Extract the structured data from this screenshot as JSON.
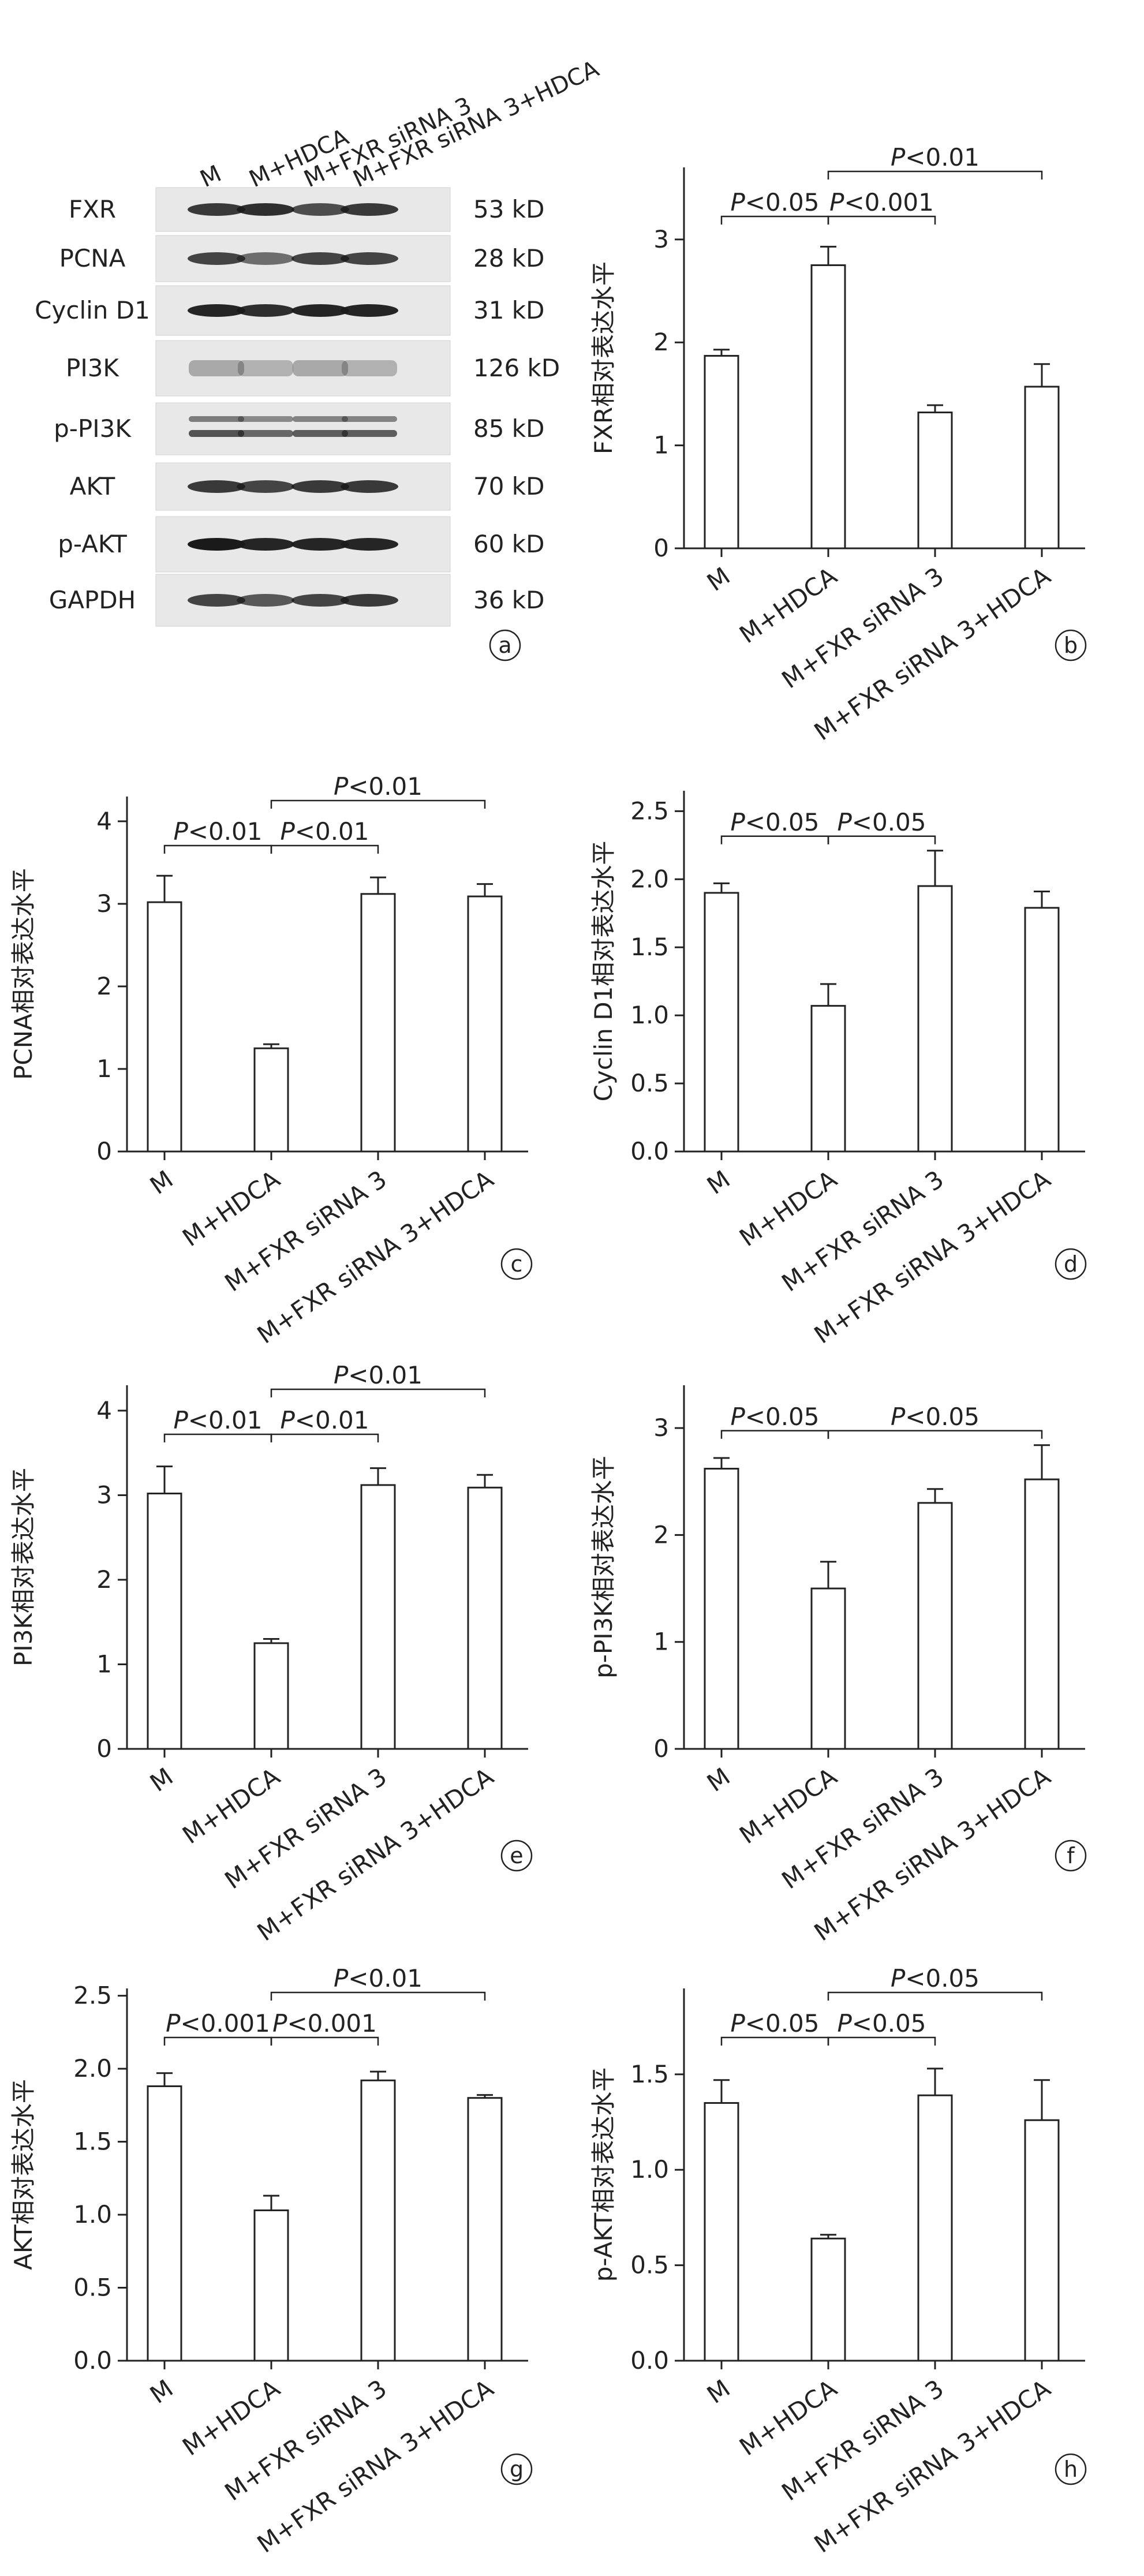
{
  "panel_a": {
    "letter": "a",
    "lanes": [
      "M",
      "M+HDCA",
      "M+FXR siRNA 3",
      "M+FXR siRNA 3+HDCA"
    ],
    "proteins": [
      "FXR",
      "PCNA",
      "Cyclin D1",
      "PI3K",
      "p-PI3K",
      "AKT",
      "p-AKT",
      "GAPDH"
    ],
    "sizes": [
      "53 kD",
      "28 kD",
      "31 kD",
      "126 kD",
      "85 kD",
      "70 kD",
      "60 kD",
      "36 kD"
    ]
  },
  "chart_data": [
    {
      "type": "bar",
      "letter": "b",
      "ylabel": "FXR相对表达水平",
      "categories": [
        "M",
        "M+HDCA",
        "M+FXR siRNA 3",
        "M+FXR siRNA 3+HDCA"
      ],
      "values": [
        1.87,
        2.75,
        1.32,
        1.57
      ],
      "errors": [
        0.06,
        0.18,
        0.07,
        0.22
      ],
      "ylim": [
        0,
        3.7
      ],
      "yticks": [
        "0",
        "1",
        "2",
        "3"
      ],
      "ytick_values": [
        0,
        1,
        2,
        3
      ],
      "sig": [
        {
          "from": 0,
          "to": 1,
          "label": "P<0.05",
          "level": 0
        },
        {
          "from": 1,
          "to": 2,
          "label": "P<0.001",
          "level": 0
        },
        {
          "from": 1,
          "to": 3,
          "label": "P<0.01",
          "level": 1
        }
      ]
    },
    {
      "type": "bar",
      "letter": "c",
      "ylabel": "PCNA相对表达水平",
      "categories": [
        "M",
        "M+HDCA",
        "M+FXR siRNA 3",
        "M+FXR siRNA 3+HDCA"
      ],
      "values": [
        3.02,
        1.25,
        3.12,
        3.09
      ],
      "errors": [
        0.32,
        0.05,
        0.2,
        0.15
      ],
      "ylim": [
        0,
        4.3
      ],
      "yticks": [
        "0",
        "1",
        "2",
        "3",
        "4"
      ],
      "ytick_values": [
        0,
        1,
        2,
        3,
        4
      ],
      "sig": [
        {
          "from": 0,
          "to": 1,
          "label": "P<0.01",
          "level": 0
        },
        {
          "from": 1,
          "to": 2,
          "label": "P<0.01",
          "level": 0
        },
        {
          "from": 1,
          "to": 3,
          "label": "P<0.01",
          "level": 1
        }
      ]
    },
    {
      "type": "bar",
      "letter": "d",
      "ylabel": "Cyclin D1相对表达水平",
      "categories": [
        "M",
        "M+HDCA",
        "M+FXR siRNA 3",
        "M+FXR siRNA 3+HDCA"
      ],
      "values": [
        1.9,
        1.07,
        1.95,
        1.79
      ],
      "errors": [
        0.07,
        0.16,
        0.26,
        0.12
      ],
      "ylim": [
        0,
        2.65
      ],
      "yticks": [
        "0.0",
        "0.5",
        "1.0",
        "1.5",
        "2.0",
        "2.5"
      ],
      "ytick_values": [
        0,
        0.5,
        1,
        1.5,
        2,
        2.5
      ],
      "sig": [
        {
          "from": 0,
          "to": 1,
          "label": "P<0.05",
          "level": 0
        },
        {
          "from": 1,
          "to": 2,
          "label": "P<0.05",
          "level": 0
        }
      ]
    },
    {
      "type": "bar",
      "letter": "e",
      "ylabel": "PI3K相对表达水平",
      "categories": [
        "M",
        "M+HDCA",
        "M+FXR siRNA 3",
        "M+FXR siRNA 3+HDCA"
      ],
      "values": [
        3.02,
        1.25,
        3.12,
        3.09
      ],
      "errors": [
        0.32,
        0.05,
        0.2,
        0.15
      ],
      "ylim": [
        0,
        4.3
      ],
      "yticks": [
        "0",
        "1",
        "2",
        "3",
        "4"
      ],
      "ytick_values": [
        0,
        1,
        2,
        3,
        4
      ],
      "sig": [
        {
          "from": 0,
          "to": 1,
          "label": "P<0.01",
          "level": 0
        },
        {
          "from": 1,
          "to": 2,
          "label": "P<0.01",
          "level": 0
        },
        {
          "from": 1,
          "to": 3,
          "label": "P<0.01",
          "level": 1
        }
      ]
    },
    {
      "type": "bar",
      "letter": "f",
      "ylabel": "p-PI3K相对表达水平",
      "categories": [
        "M",
        "M+HDCA",
        "M+FXR siRNA 3",
        "M+FXR siRNA 3+HDCA"
      ],
      "values": [
        2.62,
        1.5,
        2.3,
        2.52
      ],
      "errors": [
        0.1,
        0.25,
        0.13,
        0.32
      ],
      "ylim": [
        0,
        3.4
      ],
      "yticks": [
        "0",
        "1",
        "2",
        "3"
      ],
      "ytick_values": [
        0,
        1,
        2,
        3
      ],
      "sig": [
        {
          "from": 0,
          "to": 1,
          "label": "P<0.05",
          "level": 0
        },
        {
          "from": 1,
          "to": 3,
          "label": "P<0.05",
          "level": 0
        }
      ]
    },
    {
      "type": "bar",
      "letter": "g",
      "ylabel": "AKT相对表达水平",
      "categories": [
        "M",
        "M+HDCA",
        "M+FXR siRNA 3",
        "M+FXR siRNA 3+HDCA"
      ],
      "values": [
        1.88,
        1.03,
        1.92,
        1.8
      ],
      "errors": [
        0.09,
        0.1,
        0.06,
        0.02
      ],
      "ylim": [
        0,
        2.55
      ],
      "yticks": [
        "0.0",
        "0.5",
        "1.0",
        "1.5",
        "2.0",
        "2.5"
      ],
      "ytick_values": [
        0,
        0.5,
        1,
        1.5,
        2,
        2.5
      ],
      "sig": [
        {
          "from": 0,
          "to": 1,
          "label": "P<0.001",
          "level": 0
        },
        {
          "from": 1,
          "to": 2,
          "label": "P<0.001",
          "level": 0
        },
        {
          "from": 1,
          "to": 3,
          "label": "P<0.01",
          "level": 1
        }
      ]
    },
    {
      "type": "bar",
      "letter": "h",
      "ylabel": "p-AKT相对表达水平",
      "categories": [
        "M",
        "M+HDCA",
        "M+FXR siRNA 3",
        "M+FXR siRNA 3+HDCA"
      ],
      "values": [
        1.35,
        0.64,
        1.39,
        1.26
      ],
      "errors": [
        0.12,
        0.02,
        0.14,
        0.21
      ],
      "ylim": [
        0,
        1.95
      ],
      "yticks": [
        "0.0",
        "0.5",
        "1.0",
        "1.5"
      ],
      "ytick_values": [
        0,
        0.5,
        1,
        1.5
      ],
      "sig": [
        {
          "from": 0,
          "to": 1,
          "label": "P<0.05",
          "level": 0
        },
        {
          "from": 1,
          "to": 2,
          "label": "P<0.05",
          "level": 0
        },
        {
          "from": 1,
          "to": 3,
          "label": "P<0.05",
          "level": 1
        }
      ]
    }
  ]
}
